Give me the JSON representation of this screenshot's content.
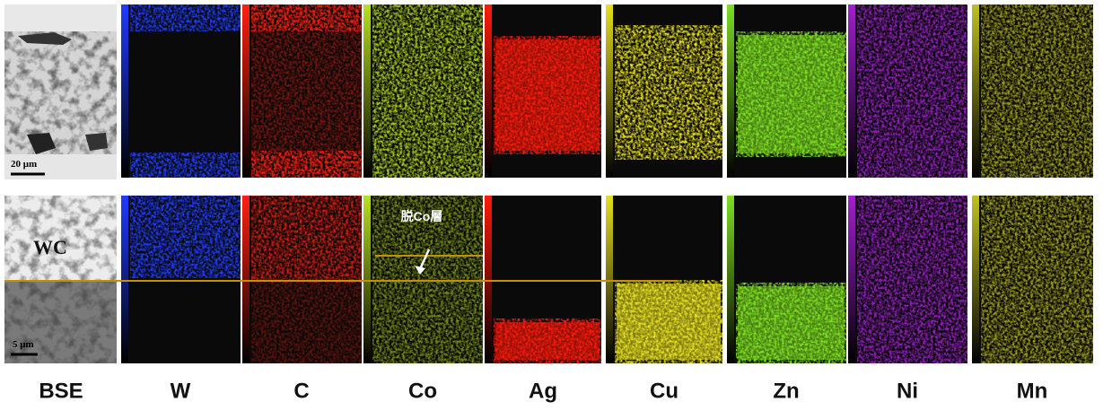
{
  "labels": [
    "BSE",
    "W",
    "C",
    "Co",
    "Ag",
    "Cu",
    "Zn",
    "Ni",
    "Mn"
  ],
  "scale_bars": [
    "20 μm",
    "5 μm"
  ],
  "annotations": {
    "phase": "WC",
    "layer": "脱Co層"
  }
}
